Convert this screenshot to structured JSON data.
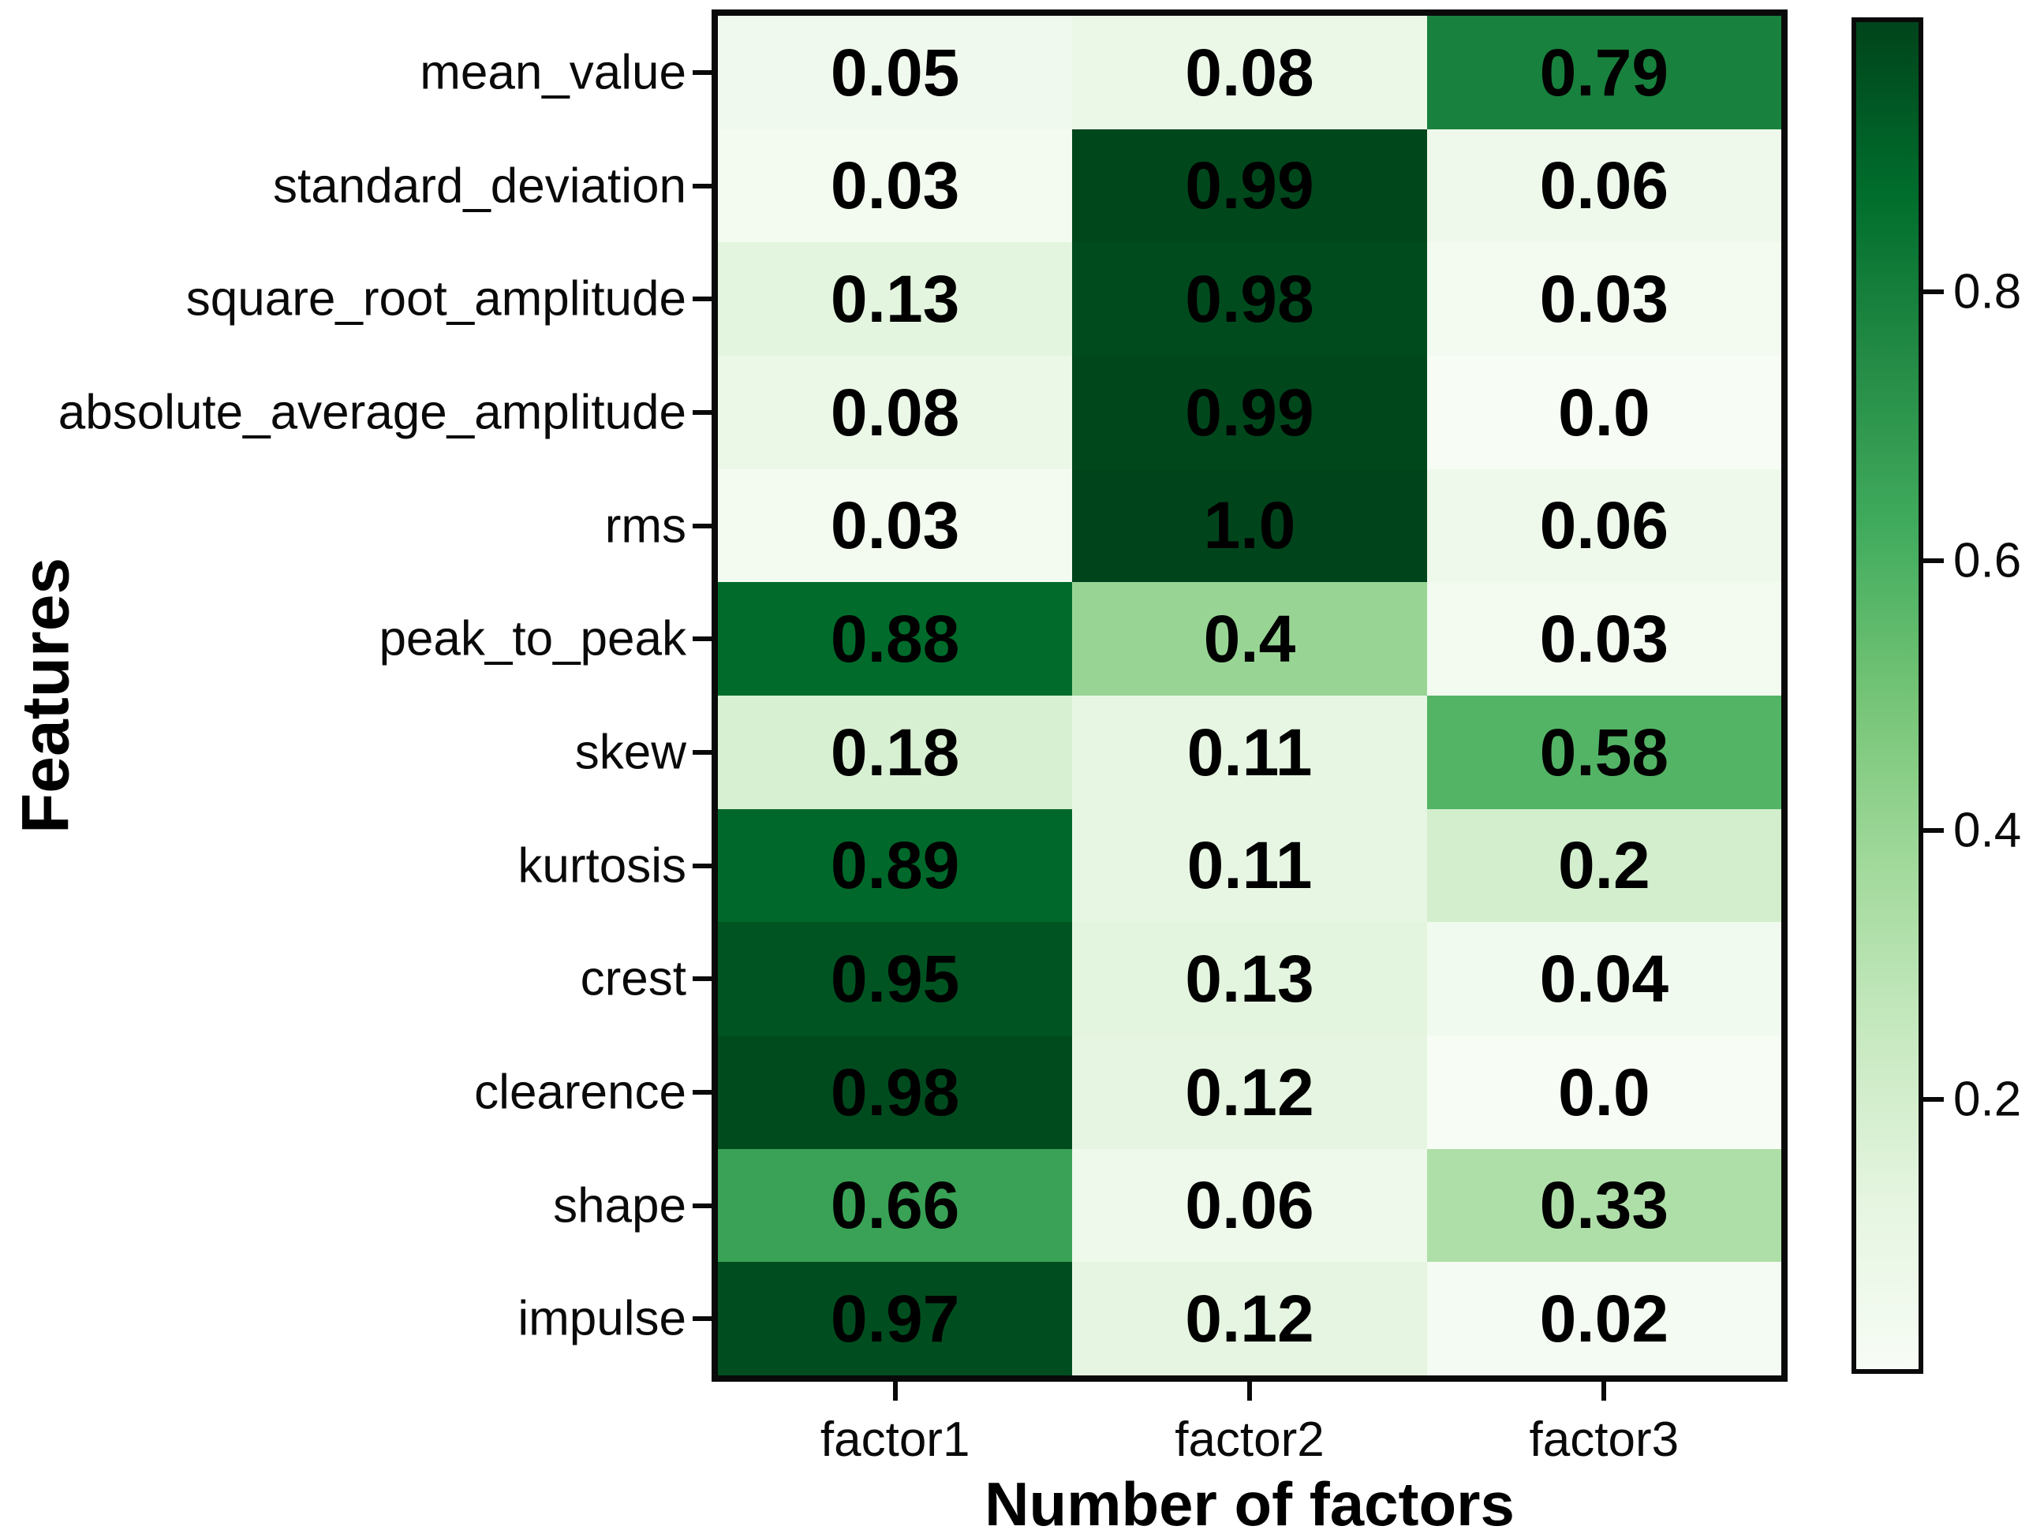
{
  "chart_data": {
    "type": "heatmap",
    "xlabel": "Number of factors",
    "ylabel": "Features",
    "columns": [
      "factor1",
      "factor2",
      "factor3"
    ],
    "rows": [
      "mean_value",
      "standard_deviation",
      "square_root_amplitude",
      "absolute_average_amplitude",
      "rms",
      "peak_to_peak",
      "skew",
      "kurtosis",
      "crest",
      "clearence",
      "shape",
      "impulse"
    ],
    "values": [
      [
        0.05,
        0.08,
        0.79
      ],
      [
        0.03,
        0.99,
        0.06
      ],
      [
        0.13,
        0.98,
        0.03
      ],
      [
        0.08,
        0.99,
        0.0
      ],
      [
        0.03,
        1.0,
        0.06
      ],
      [
        0.88,
        0.4,
        0.03
      ],
      [
        0.18,
        0.11,
        0.58
      ],
      [
        0.89,
        0.11,
        0.2
      ],
      [
        0.95,
        0.13,
        0.04
      ],
      [
        0.98,
        0.12,
        0.0
      ],
      [
        0.66,
        0.06,
        0.33
      ],
      [
        0.97,
        0.12,
        0.02
      ]
    ],
    "cell_labels": [
      [
        "0.05",
        "0.08",
        "0.79"
      ],
      [
        "0.03",
        "0.99",
        "0.06"
      ],
      [
        "0.13",
        "0.98",
        "0.03"
      ],
      [
        "0.08",
        "0.99",
        "0.0"
      ],
      [
        "0.03",
        "1.0",
        "0.06"
      ],
      [
        "0.88",
        "0.4",
        "0.03"
      ],
      [
        "0.18",
        "0.11",
        "0.58"
      ],
      [
        "0.89",
        "0.11",
        "0.2"
      ],
      [
        "0.95",
        "0.13",
        "0.04"
      ],
      [
        "0.98",
        "0.12",
        "0.0"
      ],
      [
        "0.66",
        "0.06",
        "0.33"
      ],
      [
        "0.97",
        "0.12",
        "0.02"
      ]
    ],
    "vmin": 0.0,
    "vmax": 1.0,
    "colormap": "Greens",
    "colormap_stops": [
      [
        0.0,
        "#f7fcf5"
      ],
      [
        0.125,
        "#e5f5e0"
      ],
      [
        0.25,
        "#c7e9c0"
      ],
      [
        0.375,
        "#a1d99b"
      ],
      [
        0.5,
        "#74c476"
      ],
      [
        0.625,
        "#41ab5d"
      ],
      [
        0.75,
        "#238b45"
      ],
      [
        0.875,
        "#006d2c"
      ],
      [
        1.0,
        "#00441b"
      ]
    ],
    "colorbar_ticks": [
      {
        "value": 0.2,
        "label": "0.2"
      },
      {
        "value": 0.4,
        "label": "0.4"
      },
      {
        "value": 0.6,
        "label": "0.6"
      },
      {
        "value": 0.8,
        "label": "0.8"
      }
    ],
    "grid": false,
    "legend": "colorbar-right",
    "text_color": "#000000",
    "spine_color": "#0a0a0a",
    "background_color": "#ffffff"
  }
}
